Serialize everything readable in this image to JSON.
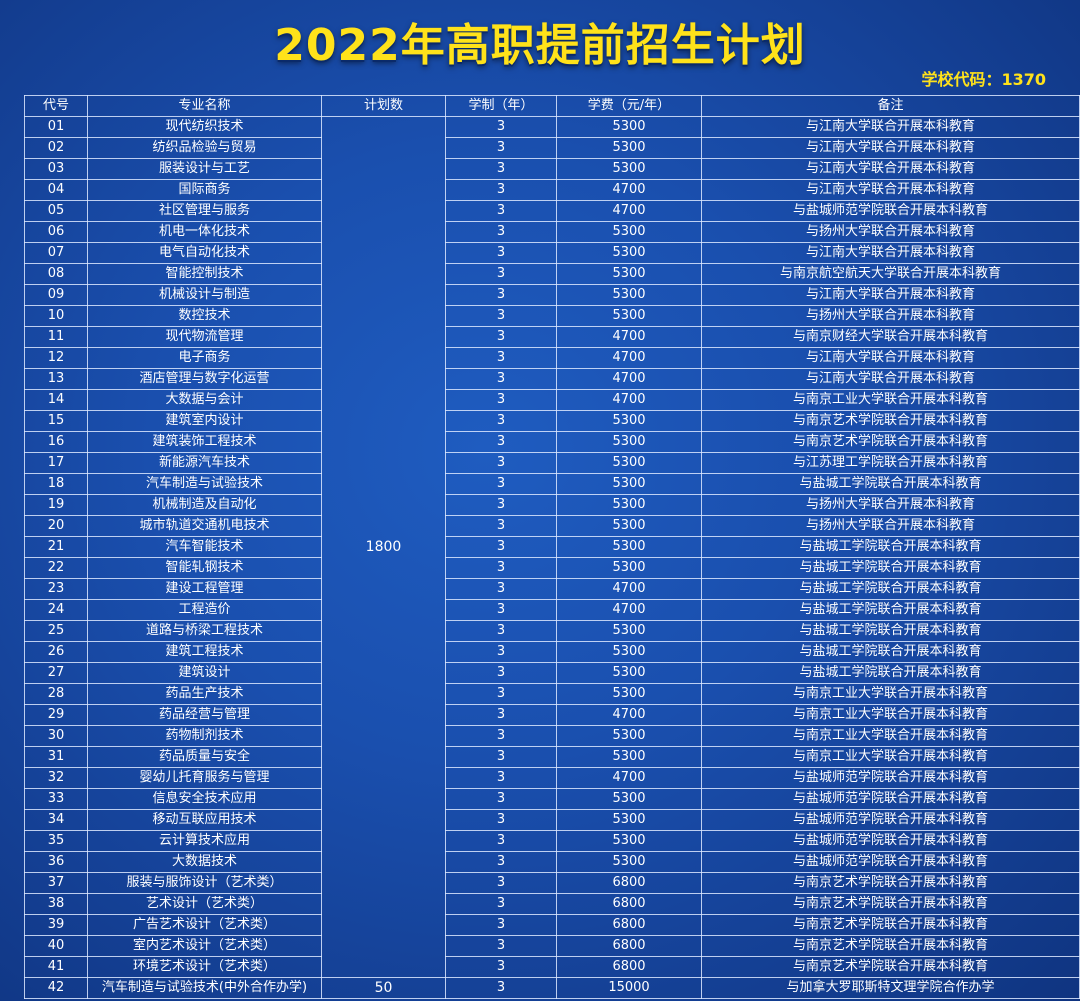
{
  "title": "2022年高职提前招生计划",
  "school_code": "学校代码：1370",
  "colors": {
    "title": "#ffe21a",
    "background": "#1a4fae",
    "grid": "#dce8ff"
  },
  "table": {
    "headers": [
      "代号",
      "专业名称",
      "计划数",
      "学制（年）",
      "学费（元/年）",
      "备注"
    ],
    "plan_main": "1800",
    "plan_last": "50",
    "rows": [
      [
        "01",
        "现代纺织技术",
        "3",
        "5300",
        "与江南大学联合开展本科教育"
      ],
      [
        "02",
        "纺织品检验与贸易",
        "3",
        "5300",
        "与江南大学联合开展本科教育"
      ],
      [
        "03",
        "服装设计与工艺",
        "3",
        "5300",
        "与江南大学联合开展本科教育"
      ],
      [
        "04",
        "国际商务",
        "3",
        "4700",
        "与江南大学联合开展本科教育"
      ],
      [
        "05",
        "社区管理与服务",
        "3",
        "4700",
        "与盐城师范学院联合开展本科教育"
      ],
      [
        "06",
        "机电一体化技术",
        "3",
        "5300",
        "与扬州大学联合开展本科教育"
      ],
      [
        "07",
        "电气自动化技术",
        "3",
        "5300",
        "与江南大学联合开展本科教育"
      ],
      [
        "08",
        "智能控制技术",
        "3",
        "5300",
        "与南京航空航天大学联合开展本科教育"
      ],
      [
        "09",
        "机械设计与制造",
        "3",
        "5300",
        "与江南大学联合开展本科教育"
      ],
      [
        "10",
        "数控技术",
        "3",
        "5300",
        "与扬州大学联合开展本科教育"
      ],
      [
        "11",
        "现代物流管理",
        "3",
        "4700",
        "与南京财经大学联合开展本科教育"
      ],
      [
        "12",
        "电子商务",
        "3",
        "4700",
        "与江南大学联合开展本科教育"
      ],
      [
        "13",
        "酒店管理与数字化运营",
        "3",
        "4700",
        "与江南大学联合开展本科教育"
      ],
      [
        "14",
        "大数据与会计",
        "3",
        "4700",
        "与南京工业大学联合开展本科教育"
      ],
      [
        "15",
        "建筑室内设计",
        "3",
        "5300",
        "与南京艺术学院联合开展本科教育"
      ],
      [
        "16",
        "建筑装饰工程技术",
        "3",
        "5300",
        "与南京艺术学院联合开展本科教育"
      ],
      [
        "17",
        "新能源汽车技术",
        "3",
        "5300",
        "与江苏理工学院联合开展本科教育"
      ],
      [
        "18",
        "汽车制造与试验技术",
        "3",
        "5300",
        "与盐城工学院联合开展本科教育"
      ],
      [
        "19",
        "机械制造及自动化",
        "3",
        "5300",
        "与扬州大学联合开展本科教育"
      ],
      [
        "20",
        "城市轨道交通机电技术",
        "3",
        "5300",
        "与扬州大学联合开展本科教育"
      ],
      [
        "21",
        "汽车智能技术",
        "3",
        "5300",
        "与盐城工学院联合开展本科教育"
      ],
      [
        "22",
        "智能轧钢技术",
        "3",
        "5300",
        "与盐城工学院联合开展本科教育"
      ],
      [
        "23",
        "建设工程管理",
        "3",
        "4700",
        "与盐城工学院联合开展本科教育"
      ],
      [
        "24",
        "工程造价",
        "3",
        "4700",
        "与盐城工学院联合开展本科教育"
      ],
      [
        "25",
        "道路与桥梁工程技术",
        "3",
        "5300",
        "与盐城工学院联合开展本科教育"
      ],
      [
        "26",
        "建筑工程技术",
        "3",
        "5300",
        "与盐城工学院联合开展本科教育"
      ],
      [
        "27",
        "建筑设计",
        "3",
        "5300",
        "与盐城工学院联合开展本科教育"
      ],
      [
        "28",
        "药品生产技术",
        "3",
        "5300",
        "与南京工业大学联合开展本科教育"
      ],
      [
        "29",
        "药品经营与管理",
        "3",
        "4700",
        "与南京工业大学联合开展本科教育"
      ],
      [
        "30",
        "药物制剂技术",
        "3",
        "5300",
        "与南京工业大学联合开展本科教育"
      ],
      [
        "31",
        "药品质量与安全",
        "3",
        "5300",
        "与南京工业大学联合开展本科教育"
      ],
      [
        "32",
        "婴幼儿托育服务与管理",
        "3",
        "4700",
        "与盐城师范学院联合开展本科教育"
      ],
      [
        "33",
        "信息安全技术应用",
        "3",
        "5300",
        "与盐城师范学院联合开展本科教育"
      ],
      [
        "34",
        "移动互联应用技术",
        "3",
        "5300",
        "与盐城师范学院联合开展本科教育"
      ],
      [
        "35",
        "云计算技术应用",
        "3",
        "5300",
        "与盐城师范学院联合开展本科教育"
      ],
      [
        "36",
        "大数据技术",
        "3",
        "5300",
        "与盐城师范学院联合开展本科教育"
      ],
      [
        "37",
        "服装与服饰设计（艺术类）",
        "3",
        "6800",
        "与南京艺术学院联合开展本科教育"
      ],
      [
        "38",
        "艺术设计（艺术类）",
        "3",
        "6800",
        "与南京艺术学院联合开展本科教育"
      ],
      [
        "39",
        "广告艺术设计（艺术类）",
        "3",
        "6800",
        "与南京艺术学院联合开展本科教育"
      ],
      [
        "40",
        "室内艺术设计（艺术类）",
        "3",
        "6800",
        "与南京艺术学院联合开展本科教育"
      ],
      [
        "41",
        "环境艺术设计（艺术类）",
        "3",
        "6800",
        "与南京艺术学院联合开展本科教育"
      ],
      [
        "42",
        "汽车制造与试验技术(中外合作办学)",
        "3",
        "15000",
        "与加拿大罗耶斯特文理学院合作办学"
      ]
    ]
  }
}
